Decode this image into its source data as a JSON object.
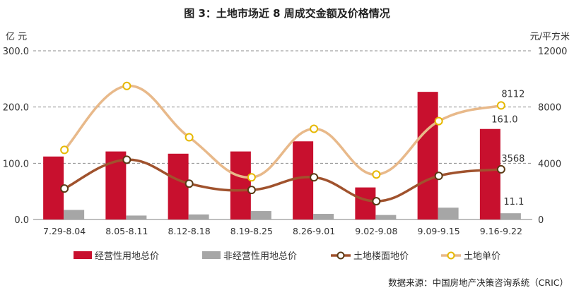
{
  "chart_data": {
    "type": "bar",
    "title": "图 3：土地市场近 8 周成交金额及价格情况",
    "left_unit": "亿 元",
    "right_unit": "元/平方米",
    "categories": [
      "7.29-8.04",
      "8.05-8.11",
      "8.12-8.18",
      "8.19-8.25",
      "8.26-9.01",
      "9.02-9.08",
      "9.09-9.15",
      "9.16-9.22"
    ],
    "left_axis": {
      "min": 0,
      "max": 300,
      "ticks": [
        "0.0",
        "100.0",
        "200.0",
        "300.0"
      ]
    },
    "right_axis": {
      "min": 0,
      "max": 12000,
      "ticks": [
        "0",
        "4000",
        "8000",
        "12000"
      ]
    },
    "grid": true,
    "legend_position": "bottom",
    "series": [
      {
        "name": "经营性用地总价",
        "kind": "bar",
        "axis": "left",
        "color": "#c8102e",
        "values": [
          112,
          121,
          117,
          121,
          139,
          57,
          227,
          161.0
        ]
      },
      {
        "name": "非经营性用地总价",
        "kind": "bar",
        "axis": "left",
        "color": "#a6a6a6",
        "values": [
          17,
          7,
          9,
          15,
          10,
          8,
          21,
          11.1
        ]
      },
      {
        "name": "土地楼面地价",
        "kind": "line",
        "axis": "right",
        "color": "#a0522d",
        "values": [
          2200,
          4250,
          2550,
          2100,
          3000,
          1300,
          3100,
          3568
        ]
      },
      {
        "name": "土地单价",
        "kind": "line",
        "axis": "right",
        "color": "#e8b98a",
        "values": [
          4950,
          9500,
          5850,
          3000,
          6450,
          3200,
          7000,
          8112
        ]
      }
    ],
    "data_labels": [
      "161.0",
      "11.1",
      "3568",
      "8112"
    ],
    "source": "数据来源：中国房地产决策咨询系统（CRIC）"
  }
}
